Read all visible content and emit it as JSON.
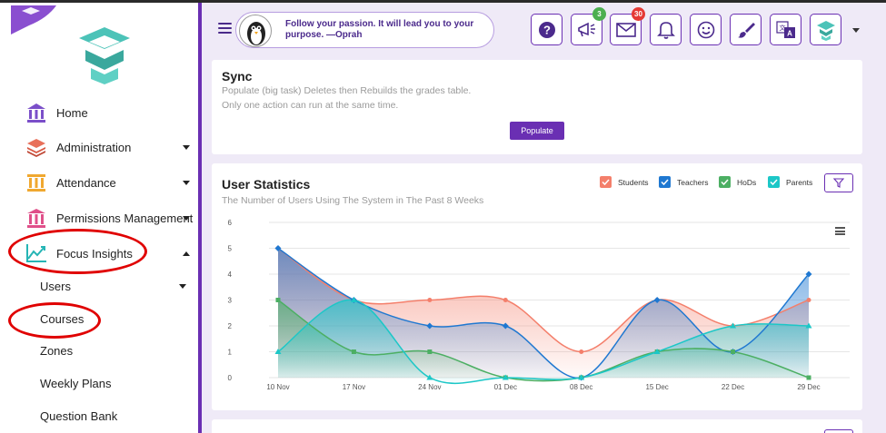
{
  "sidebar": {
    "items": [
      {
        "label": "Home",
        "icon": "home-building-icon",
        "color": "#7b4fc9"
      },
      {
        "label": "Administration",
        "icon": "layers-icon",
        "color": "#e8705a"
      },
      {
        "label": "Attendance",
        "icon": "pillars-icon",
        "color": "#f0a830"
      },
      {
        "label": "Permissions Management",
        "icon": "bank-icon",
        "color": "#e0508a"
      },
      {
        "label": "Focus Insights",
        "icon": "trend-chart-icon",
        "color": "#26b5b5"
      }
    ],
    "subitems": [
      {
        "label": "Users"
      },
      {
        "label": "Courses"
      },
      {
        "label": "Zones"
      },
      {
        "label": "Weekly Plans"
      },
      {
        "label": "Question Bank"
      }
    ]
  },
  "header": {
    "quote": "Follow your passion. It will lead you to your purpose. —Oprah",
    "notifications_badge": "3",
    "messages_badge": "30",
    "badge_green": "#4caf50",
    "badge_red": "#e53935",
    "accent": "#6a2fb3"
  },
  "sync": {
    "title": "Sync",
    "line1": "Populate (big task) Deletes then Rebuilds the grades table.",
    "line2": "Only one action can run at the same time.",
    "button": "Populate"
  },
  "stats": {
    "title": "User Statistics",
    "subtitle": "The Number of Users Using The System in The Past 8 Weeks"
  },
  "chart_data": {
    "type": "area",
    "categories": [
      "10 Nov",
      "17 Nov",
      "24 Nov",
      "01 Dec",
      "08 Dec",
      "15 Dec",
      "22 Dec",
      "29 Dec"
    ],
    "ylim": [
      0,
      6
    ],
    "yticks": [
      0,
      1,
      2,
      3,
      4,
      5,
      6
    ],
    "legend_position": "top-right",
    "series": [
      {
        "name": "Students",
        "color": "#f47f6b",
        "values": [
          5,
          3,
          3,
          3,
          1,
          3,
          2,
          3
        ]
      },
      {
        "name": "Teachers",
        "color": "#1f78d1",
        "values": [
          5,
          3,
          2,
          2,
          0,
          3,
          1,
          4
        ]
      },
      {
        "name": "HoDs",
        "color": "#4caf63",
        "values": [
          3,
          1,
          1,
          0,
          0,
          1,
          1,
          0
        ]
      },
      {
        "name": "Parents",
        "color": "#1cc7c7",
        "values": [
          1,
          3,
          0,
          0,
          0,
          1,
          2,
          2
        ]
      }
    ]
  }
}
